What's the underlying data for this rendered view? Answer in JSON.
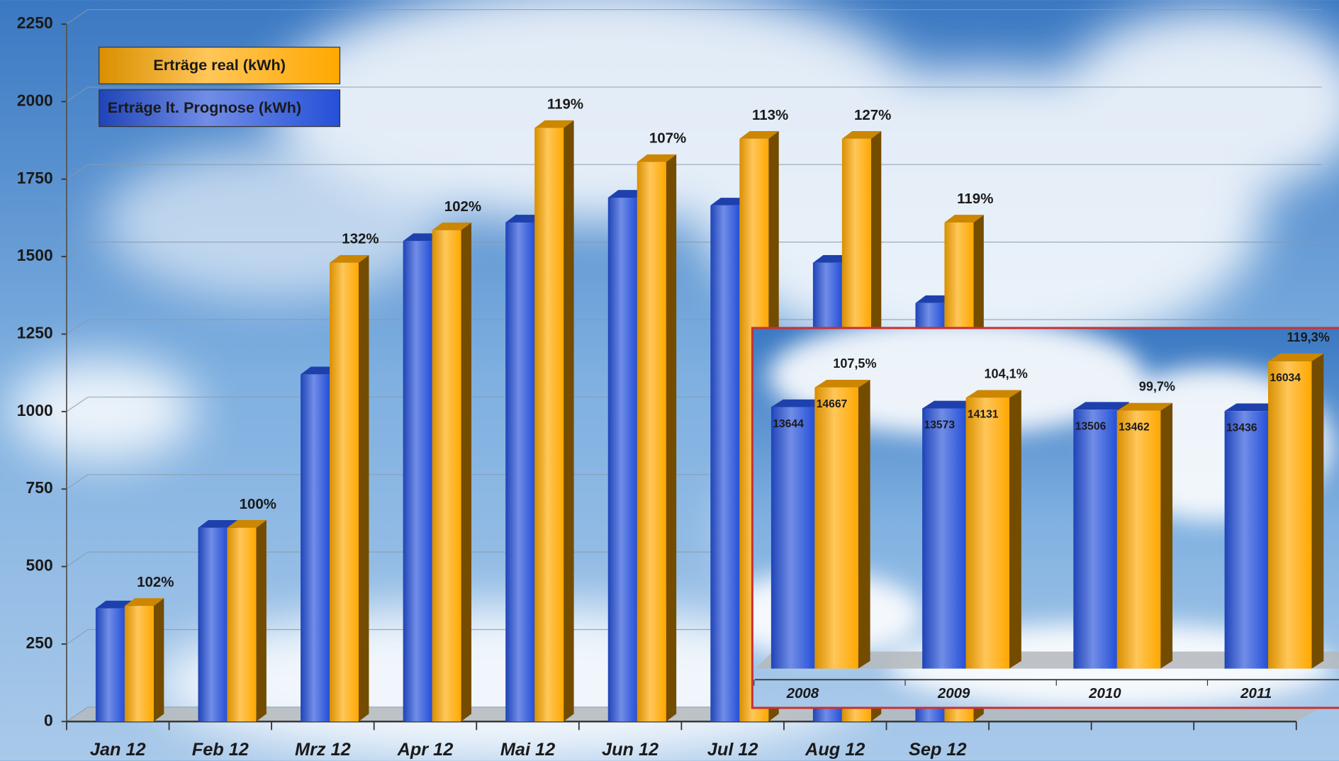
{
  "chart_data": [
    {
      "type": "bar",
      "categories": [
        "Jan 12",
        "Feb 12",
        "Mrz 12",
        "Apr 12",
        "Mai 12",
        "Jun 12",
        "Jul 12",
        "Aug 12",
        "Sep 12",
        null,
        null,
        null
      ],
      "series": [
        {
          "name": "Erträge lt. Prognose (kWh)",
          "color": "#2450d8",
          "values": [
            365,
            625,
            1120,
            1550,
            1610,
            1690,
            1665,
            1480,
            1350,
            null,
            null,
            null
          ]
        },
        {
          "name": "Erträge real (kWh)",
          "color": "#ffa800",
          "values": [
            373,
            625,
            1480,
            1585,
            1915,
            1805,
            1880,
            1880,
            1610,
            null,
            null,
            null
          ]
        }
      ],
      "annotations": [
        "102%",
        "100%",
        "132%",
        "102%",
        "119%",
        "107%",
        "113%",
        "127%",
        "119%",
        null,
        null,
        null
      ],
      "ylim": [
        0,
        2250
      ],
      "yticks": [
        0,
        250,
        500,
        750,
        1000,
        1250,
        1500,
        1750,
        2000,
        2250
      ],
      "grid": true
    },
    {
      "type": "bar",
      "categories": [
        "2008",
        "2009",
        "2010",
        "2011"
      ],
      "series": [
        {
          "name": "Erträge lt. Prognose (kWh)",
          "color": "#2450d8",
          "values": [
            13644,
            13573,
            13506,
            13436
          ]
        },
        {
          "name": "Erträge real (kWh)",
          "color": "#ffa800",
          "values": [
            14667,
            14131,
            13462,
            16034
          ]
        }
      ],
      "annotations": [
        "107,5%",
        "104,1%",
        "99,7%",
        "119,3%"
      ]
    }
  ]
}
